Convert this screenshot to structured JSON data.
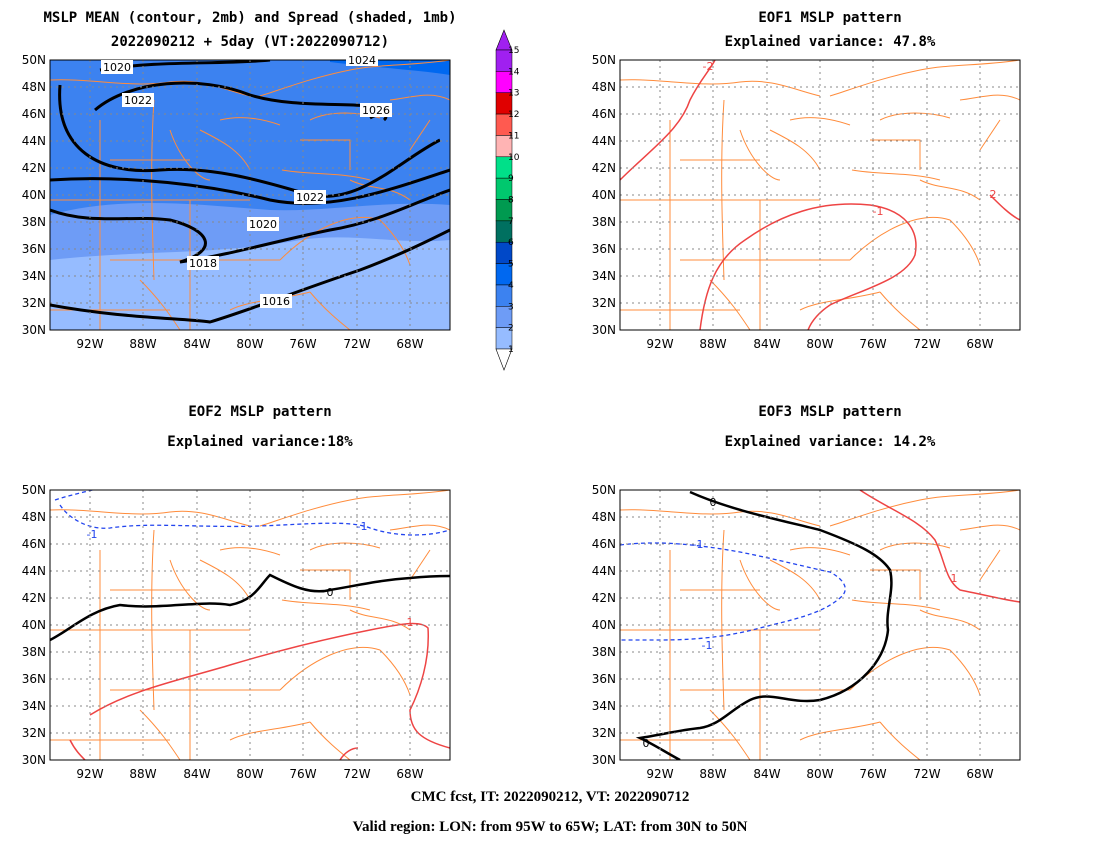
{
  "panels": [
    {
      "id": "mean",
      "title1": "MSLP MEAN (contour, 2mb) and Spread (shaded, 1mb)",
      "title2": "2022090212 + 5day (VT:2022090712)"
    },
    {
      "id": "eof1",
      "title1": "EOF1 MSLP pattern",
      "title2": "Explained variance: 47.8%"
    },
    {
      "id": "eof2",
      "title1": "EOF2 MSLP pattern",
      "title2": "Explained variance:18%"
    },
    {
      "id": "eof3",
      "title1": "EOF3 MSLP pattern",
      "title2": "Explained variance: 14.2%"
    }
  ],
  "axes": {
    "lat_labels": [
      "50N",
      "48N",
      "46N",
      "44N",
      "42N",
      "40N",
      "38N",
      "36N",
      "34N",
      "32N",
      "30N"
    ],
    "lon_labels": [
      "92W",
      "88W",
      "84W",
      "80W",
      "76W",
      "72W",
      "68W"
    ]
  },
  "colorbar": {
    "levels": [
      "15",
      "14",
      "13",
      "12",
      "11",
      "10",
      "9",
      "8",
      "7",
      "6",
      "5",
      "4",
      "3",
      "2",
      "1"
    ],
    "colors": [
      "#a020f0",
      "#ff00ff",
      "#e00000",
      "#ff5a50",
      "#ffb4b4",
      "#00e089",
      "#00c86e",
      "#009a50",
      "#007060",
      "#0048c8",
      "#0068f0",
      "#3c82f0",
      "#6e9cf6",
      "#96bcff"
    ]
  },
  "mean_contours": [
    "1018",
    "1016",
    "1020",
    "1022",
    "1020",
    "1022",
    "1024",
    "1026",
    "1016",
    "1018",
    "1020",
    "1022",
    "1024"
  ],
  "eof1_labels": [
    "-2",
    "-1",
    "2"
  ],
  "eof2_labels": [
    "-1",
    "0",
    "1",
    "-1"
  ],
  "eof3_labels": [
    "0",
    "-1",
    "-1",
    "1",
    "0"
  ],
  "footer": {
    "line1": "CMC fcst, IT: 2022090212, VT: 2022090712",
    "line2": "Valid region: LON: from 95W to 65W; LAT: from 30N to 50N"
  }
}
